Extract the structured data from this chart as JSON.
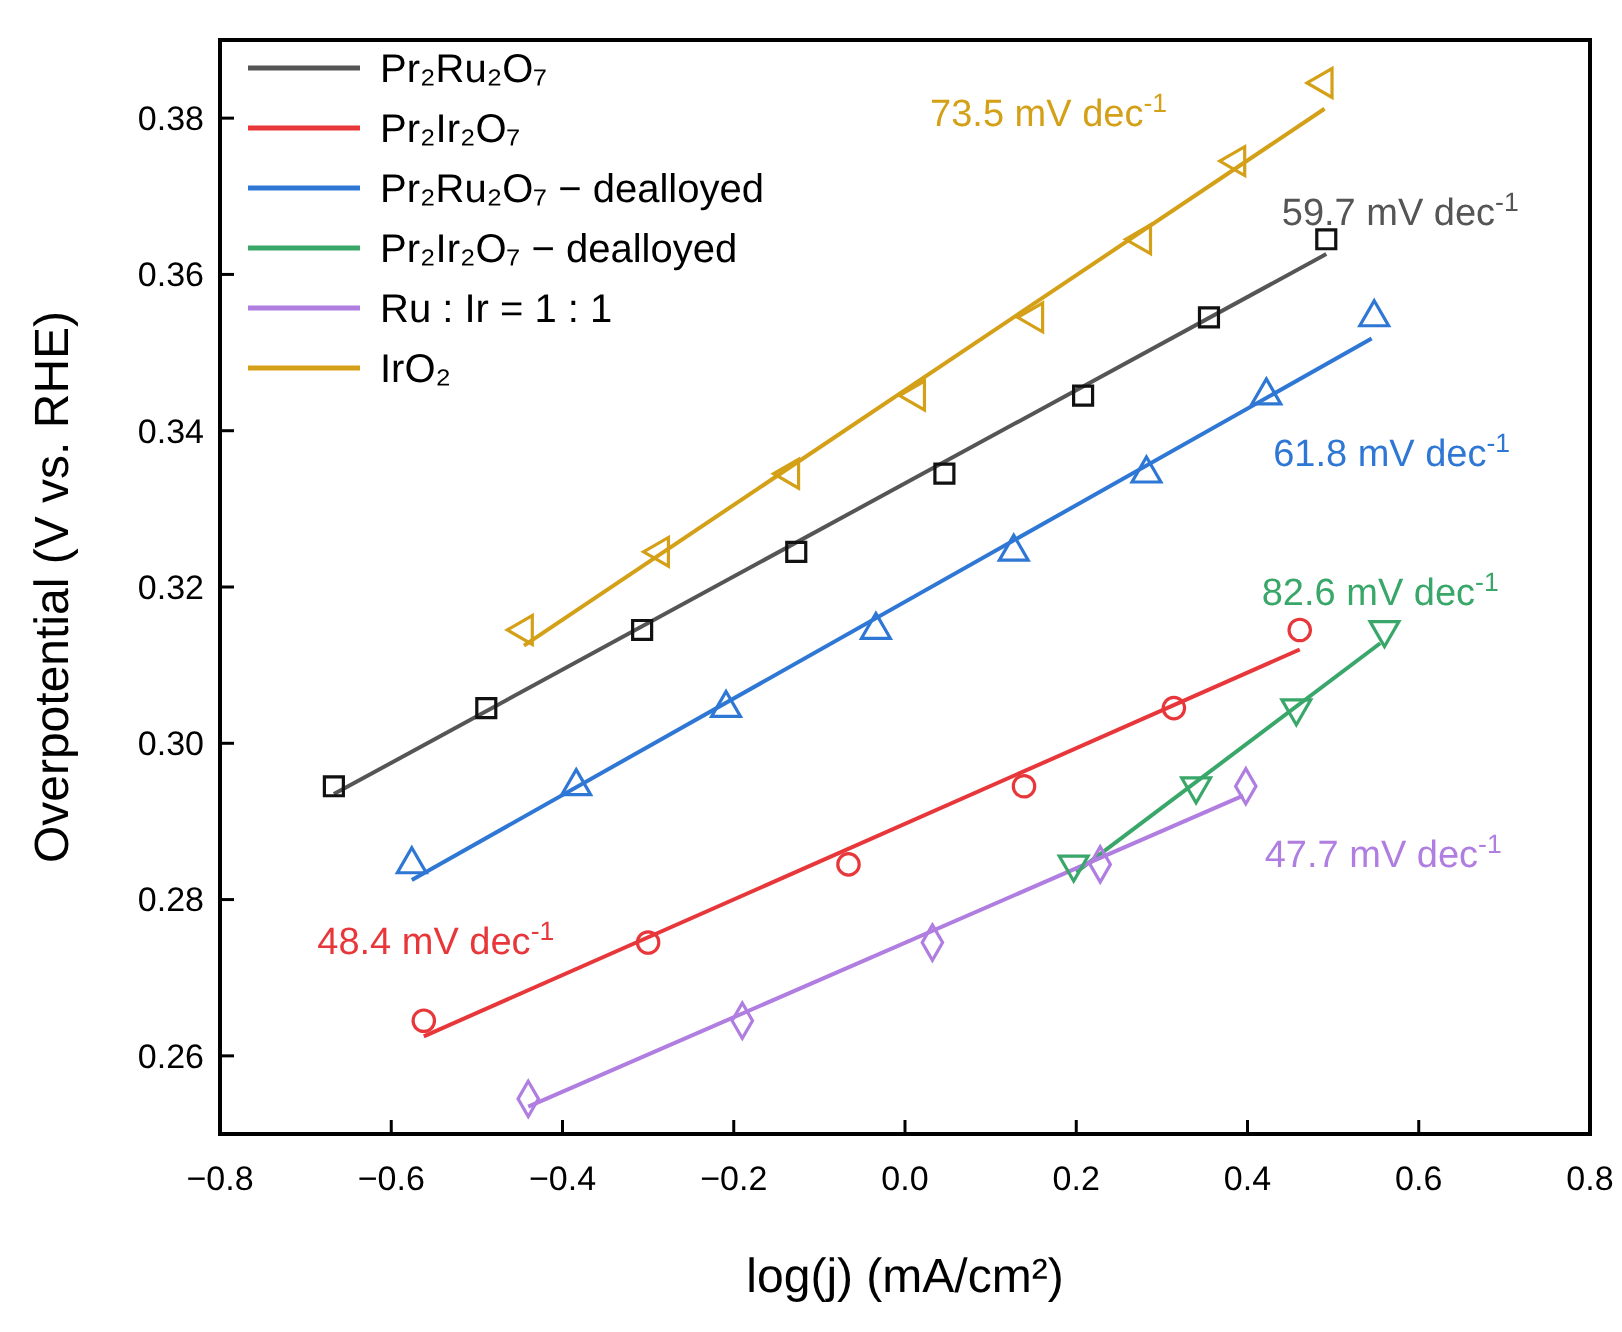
{
  "chart_data": {
    "type": "scatter",
    "xlabel": "log(j) (mA/cm²)",
    "ylabel": "Overpotential (V vs. RHE)",
    "xlim": [
      -0.8,
      0.8
    ],
    "ylim": [
      0.25,
      0.39
    ],
    "xticks": [
      {
        "value": -0.8,
        "label": "−0.8"
      },
      {
        "value": -0.6,
        "label": "−0.6"
      },
      {
        "value": -0.4,
        "label": "−0.4"
      },
      {
        "value": -0.2,
        "label": "−0.2"
      },
      {
        "value": 0,
        "label": "0.0"
      },
      {
        "value": 0.2,
        "label": "0.2"
      },
      {
        "value": 0.4,
        "label": "0.4"
      },
      {
        "value": 0.6,
        "label": "0.6"
      },
      {
        "value": 0.8,
        "label": "0.8"
      }
    ],
    "yticks": [
      0.26,
      0.28,
      {
        "value": 0.3,
        "label": "0.30"
      },
      0.32,
      0.34,
      0.36,
      0.38
    ],
    "legend": "top left",
    "grid": false,
    "series": [
      {
        "type": "line",
        "name": "Pr₂Ru₂O₇",
        "color": "#555555",
        "x": [
          -0.667,
          0.492
        ],
        "values": [
          0.2935,
          0.3626
        ],
        "marker": "none"
      },
      {
        "type": "line",
        "name": "Pr₂Ir₂O₇",
        "color": "#e8373a",
        "x": [
          -0.562,
          0.461
        ],
        "values": [
          0.2625,
          0.312
        ],
        "marker": "none"
      },
      {
        "type": "line",
        "name": "Pr₂Ru₂O₇ − dealloyed",
        "color": "#2f77d4",
        "x": [
          -0.576,
          0.545
        ],
        "values": [
          0.2825,
          0.3518
        ],
        "marker": "none"
      },
      {
        "type": "line",
        "name": "Pr₂Ir₂O₇ − dealloyed",
        "color": "#3aa76a",
        "x": [
          0.2,
          0.555
        ],
        "values": [
          0.2835,
          0.3128
        ],
        "marker": "none"
      },
      {
        "type": "line",
        "name": "Ru : Ir = 1 : 1",
        "color": "#b07de0",
        "x": [
          -0.44,
          0.395
        ],
        "values": [
          0.2535,
          0.2933
        ],
        "marker": "none"
      },
      {
        "type": "line",
        "name": "IrO₂",
        "color": "#d4a017",
        "x": [
          -0.445,
          0.49
        ],
        "values": [
          0.3125,
          0.3812
        ],
        "marker": "none"
      },
      {
        "color": "#111111",
        "marker": "square",
        "x": [
          -0.667,
          -0.489,
          -0.307,
          -0.127,
          0.046,
          0.208,
          0.355,
          0.492
        ],
        "values": [
          0.2945,
          0.3045,
          0.3145,
          0.3245,
          0.3345,
          0.3445,
          0.3545,
          0.3645
        ]
      },
      {
        "color": "#e8373a",
        "marker": "circle",
        "x": [
          -0.562,
          -0.3,
          -0.066,
          0.139,
          0.314,
          0.461
        ],
        "values": [
          0.2645,
          0.2745,
          0.2845,
          0.2945,
          0.3045,
          0.3145
        ]
      },
      {
        "color": "#2f77d4",
        "marker": "triangle",
        "x": [
          -0.576,
          -0.384,
          -0.209,
          -0.034,
          0.127,
          0.282,
          0.422,
          0.548
        ],
        "values": [
          0.2845,
          0.2945,
          0.3045,
          0.3145,
          0.3245,
          0.3345,
          0.3445,
          0.3545
        ]
      },
      {
        "color": "#3aa76a",
        "marker": "triangle-down",
        "x": [
          0.197,
          0.34,
          0.457,
          0.56
        ],
        "values": [
          0.2845,
          0.2945,
          0.3045,
          0.3145
        ]
      },
      {
        "color": "#b07de0",
        "marker": "diamond",
        "x": [
          -0.44,
          -0.19,
          0.032,
          0.228,
          0.398
        ],
        "values": [
          0.2545,
          0.2645,
          0.2745,
          0.2845,
          0.2945
        ]
      },
      {
        "color": "#d4a017",
        "marker": "triangle-left",
        "x": [
          -0.445,
          -0.286,
          -0.134,
          0.013,
          0.151,
          0.277,
          0.387,
          0.489
        ],
        "values": [
          0.3145,
          0.3245,
          0.3345,
          0.3445,
          0.3545,
          0.3645,
          0.3745,
          0.3845
        ]
      }
    ],
    "annotations": [
      "59.7 mV dec$^{-1}$",
      "48.4 mV dec$^{-1}$",
      "61.8 mV dec$^{-1}$",
      "82.6 mV dec$^{-1}$",
      "47.7 mV dec$^{-1}$",
      "73.5 mV dec$^{-1}$"
    ]
  }
}
